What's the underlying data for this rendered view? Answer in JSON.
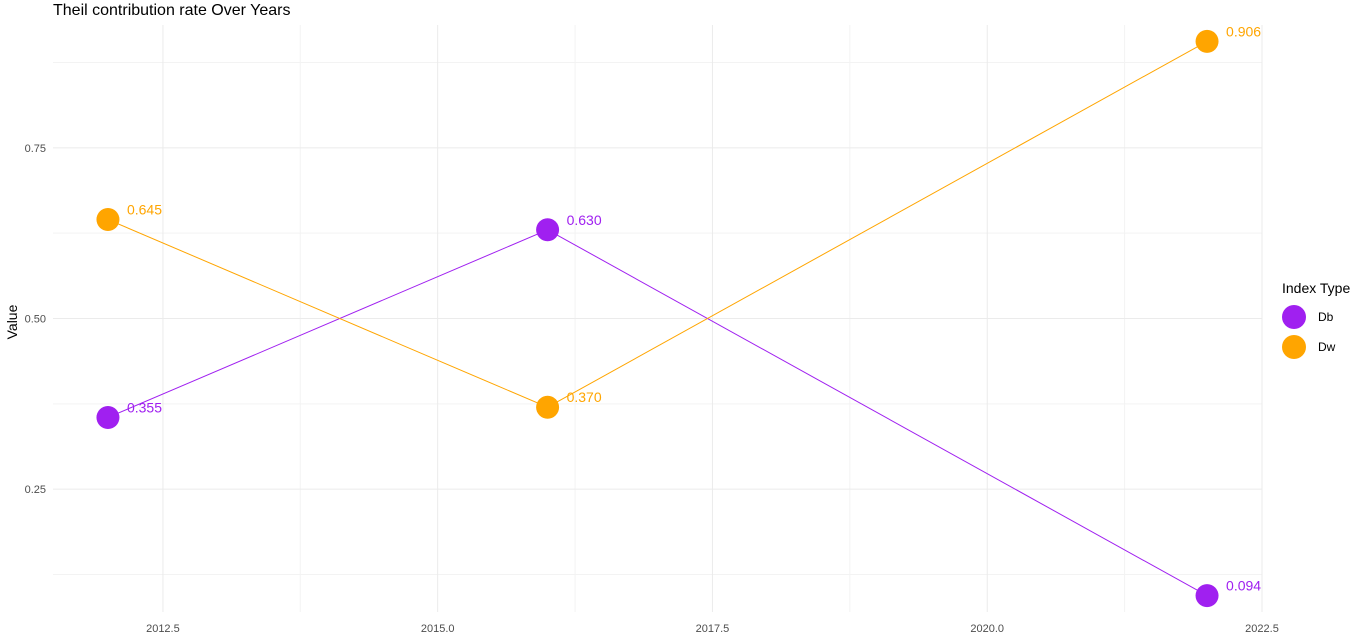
{
  "chart_data": {
    "type": "line",
    "title": "Theil contribution rate Over Years",
    "xlabel": "",
    "ylabel": "Value",
    "xlim": [
      2011.5,
      2022.5
    ],
    "ylim": [
      0.07,
      0.93
    ],
    "x_ticks": [
      2012.5,
      2015.0,
      2017.5,
      2020.0,
      2022.5
    ],
    "x_tick_labels": [
      "2012.5",
      "2015.0",
      "2017.5",
      "2020.0",
      "2022.5"
    ],
    "y_ticks": [
      0.25,
      0.5,
      0.75
    ],
    "y_tick_labels": [
      "0.25",
      "0.50",
      "0.75"
    ],
    "grid": true,
    "legend": {
      "title": "Index Type",
      "position": "right"
    },
    "series": [
      {
        "name": "Db",
        "color": "#a020f0",
        "x": [
          2012,
          2016,
          2022
        ],
        "values": [
          0.355,
          0.63,
          0.094
        ],
        "labels": [
          "0.355",
          "0.630",
          "0.094"
        ]
      },
      {
        "name": "Dw",
        "color": "#ffa500",
        "x": [
          2012,
          2016,
          2022
        ],
        "values": [
          0.645,
          0.37,
          0.906
        ],
        "labels": [
          "0.645",
          "0.370",
          "0.906"
        ]
      }
    ]
  }
}
